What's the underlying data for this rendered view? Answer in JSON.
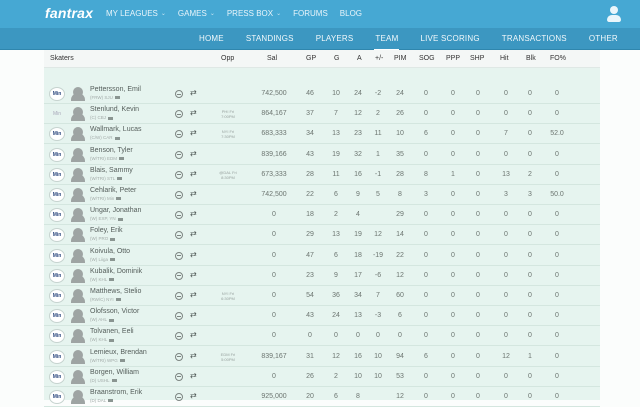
{
  "topbar": {
    "logo": "fantrax",
    "nav": [
      {
        "label": "MY LEAGUES",
        "has_dropdown": true
      },
      {
        "label": "GAMES",
        "has_dropdown": true
      },
      {
        "label": "PRESS BOX",
        "has_dropdown": true
      },
      {
        "label": "FORUMS",
        "has_dropdown": false
      },
      {
        "label": "BLOG",
        "has_dropdown": false
      }
    ],
    "user_icon": "user-icon",
    "color": "#46a8d3"
  },
  "subnav": {
    "tabs": [
      {
        "label": "HOME",
        "active": false
      },
      {
        "label": "STANDINGS",
        "active": false
      },
      {
        "label": "PLAYERS",
        "active": false
      },
      {
        "label": "TEAM",
        "active": true
      },
      {
        "label": "LIVE SCORING",
        "active": false
      },
      {
        "label": "TRANSACTIONS",
        "active": false
      },
      {
        "label": "OTHER",
        "active": false
      }
    ],
    "color": "#3c97c1"
  },
  "table": {
    "section_label": "Skaters",
    "columns": [
      "Opp",
      "Sal",
      "GP",
      "G",
      "A",
      "+/-",
      "PIM",
      "SOG",
      "PPP",
      "SHP",
      "Hit",
      "Blk",
      "FO%"
    ],
    "rows": [
      {
        "slot": "Min",
        "name": "Pettersson, Emil",
        "info": "(FRW) SJU",
        "opp": "",
        "sal": "742,500",
        "gp": "46",
        "g": "10",
        "a": "24",
        "pm": "-2",
        "pim": "24",
        "sog": "0",
        "ppp": "0",
        "shp": "0",
        "hit": "0",
        "blk": "0",
        "fo": "0"
      },
      {
        "slot": "Min",
        "slot_faded": true,
        "name": "Stenlund, Kevin",
        "info": "(C) CBJ",
        "opp": "PHI Fri 7:00PM",
        "sal": "864,167",
        "gp": "37",
        "g": "7",
        "a": "12",
        "pm": "2",
        "pim": "26",
        "sog": "0",
        "ppp": "0",
        "shp": "0",
        "hit": "0",
        "blk": "0",
        "fo": "0"
      },
      {
        "slot": "Min",
        "name": "Wallmark, Lucas",
        "info": "(C/W) CAR",
        "opp": "NYI Fri 7:30PM",
        "sal": "683,333",
        "gp": "34",
        "g": "13",
        "a": "23",
        "pm": "11",
        "pim": "10",
        "sog": "6",
        "ppp": "0",
        "shp": "0",
        "hit": "7",
        "blk": "0",
        "fo": "52.0"
      },
      {
        "slot": "Min",
        "name": "Benson, Tyler",
        "info": "(W/TRI) EDM",
        "opp": "",
        "sal": "839,166",
        "gp": "43",
        "g": "19",
        "a": "32",
        "pm": "1",
        "pim": "35",
        "sog": "0",
        "ppp": "0",
        "shp": "0",
        "hit": "0",
        "blk": "0",
        "fo": "0"
      },
      {
        "slot": "Min",
        "name": "Blais, Sammy",
        "info": "(W/TRI) STL",
        "opp": "@DAL Fri 8:30PM",
        "sal": "673,333",
        "gp": "28",
        "g": "11",
        "a": "16",
        "pm": "-1",
        "pim": "28",
        "sog": "8",
        "ppp": "1",
        "shp": "0",
        "hit": "13",
        "blk": "2",
        "fo": "0"
      },
      {
        "slot": "Min",
        "name": "Cehlarik, Peter",
        "info": "(W/TRI) Min",
        "opp": "",
        "sal": "742,500",
        "gp": "22",
        "g": "6",
        "a": "9",
        "pm": "5",
        "pim": "8",
        "sog": "3",
        "ppp": "0",
        "shp": "0",
        "hit": "3",
        "blk": "3",
        "fo": "50.0"
      },
      {
        "slot": "Min",
        "name": "Ungar, Jonathan",
        "info": "(W) EXP, YN",
        "opp": "",
        "sal": "0",
        "gp": "18",
        "g": "2",
        "a": "4",
        "pm": "",
        "pim": "29",
        "sog": "0",
        "ppp": "0",
        "shp": "0",
        "hit": "0",
        "blk": "0",
        "fo": "0"
      },
      {
        "slot": "Min",
        "name": "Foley, Erik",
        "info": "(W) PRO",
        "opp": "",
        "sal": "0",
        "gp": "29",
        "g": "13",
        "a": "19",
        "pm": "12",
        "pim": "14",
        "sog": "0",
        "ppp": "0",
        "shp": "0",
        "hit": "0",
        "blk": "0",
        "fo": "0"
      },
      {
        "slot": "Min",
        "name": "Koivula, Otto",
        "info": "(W) Liiga",
        "opp": "",
        "sal": "0",
        "gp": "47",
        "g": "6",
        "a": "18",
        "pm": "-19",
        "pim": "22",
        "sog": "0",
        "ppp": "0",
        "shp": "0",
        "hit": "0",
        "blk": "0",
        "fo": "0"
      },
      {
        "slot": "Min",
        "name": "Kubalik, Dominik",
        "info": "(W) KHL",
        "opp": "",
        "sal": "0",
        "gp": "23",
        "g": "9",
        "a": "17",
        "pm": "-6",
        "pim": "12",
        "sog": "0",
        "ppp": "0",
        "shp": "0",
        "hit": "0",
        "blk": "0",
        "fo": "0"
      },
      {
        "slot": "Min",
        "name": "Matthews, Stelio",
        "info": "(RW/C) NYI",
        "opp": "NYI Fri 6:30PM",
        "sal": "0",
        "gp": "54",
        "g": "36",
        "a": "34",
        "pm": "7",
        "pim": "60",
        "sog": "0",
        "ppp": "0",
        "shp": "0",
        "hit": "0",
        "blk": "0",
        "fo": "0"
      },
      {
        "slot": "Min",
        "name": "Olofsson, Victor",
        "info": "(W) AHL",
        "opp": "",
        "sal": "0",
        "gp": "43",
        "g": "24",
        "a": "13",
        "pm": "-3",
        "pim": "6",
        "sog": "0",
        "ppp": "0",
        "shp": "0",
        "hit": "0",
        "blk": "0",
        "fo": "0"
      },
      {
        "slot": "Min",
        "name": "Tolvanen, Eeli",
        "info": "(W) KHL",
        "opp": "",
        "sal": "0",
        "gp": "0",
        "g": "0",
        "a": "0",
        "pm": "0",
        "pim": "0",
        "sog": "0",
        "ppp": "0",
        "shp": "0",
        "hit": "0",
        "blk": "0",
        "fo": "0"
      },
      {
        "slot": "Min",
        "name": "Lemieux, Brendan",
        "info": "(W/TRI) WPG",
        "opp": "EDM Fri 5:00PM",
        "sal": "839,167",
        "gp": "31",
        "g": "12",
        "a": "16",
        "pm": "10",
        "pim": "94",
        "sog": "6",
        "ppp": "0",
        "shp": "0",
        "hit": "12",
        "blk": "1",
        "fo": "0"
      },
      {
        "slot": "Min",
        "name": "Borgen, William",
        "info": "(D) USHL",
        "opp": "",
        "sal": "0",
        "gp": "26",
        "g": "2",
        "a": "10",
        "pm": "10",
        "pim": "53",
        "sog": "0",
        "ppp": "0",
        "shp": "0",
        "hit": "0",
        "blk": "0",
        "fo": "0"
      },
      {
        "slot": "Min",
        "name": "Braanstrom, Erik",
        "info": "(D) DAL",
        "opp": "",
        "sal": "925,000",
        "gp": "20",
        "g": "6",
        "a": "8",
        "pm": "",
        "pim": "12",
        "sog": "0",
        "ppp": "0",
        "shp": "0",
        "hit": "0",
        "blk": "0",
        "fo": "0"
      }
    ]
  },
  "colors": {
    "table_bg": "#e6f4ef",
    "header_bg": "#f4f7f6",
    "slot_text": "#2f4b80"
  }
}
